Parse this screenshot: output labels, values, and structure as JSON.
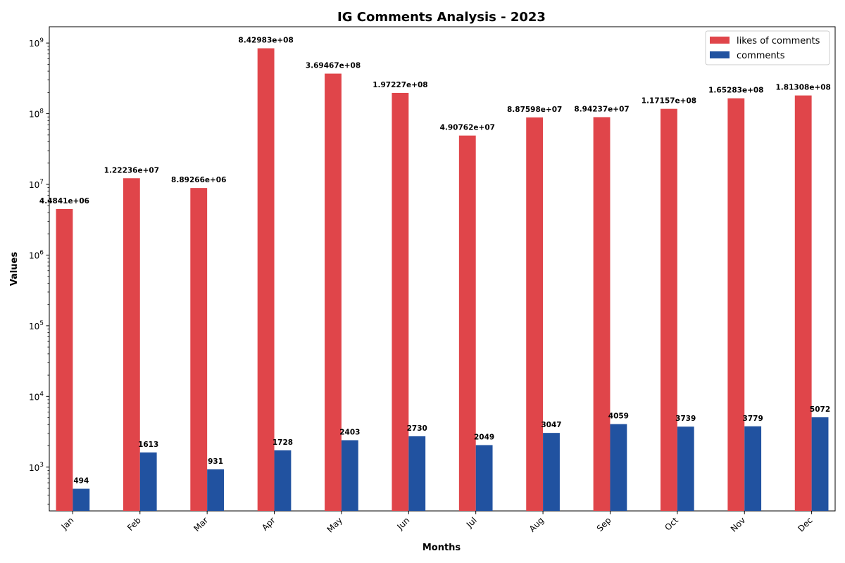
{
  "chart_data": {
    "type": "bar",
    "title": "IG Comments Analysis - 2023",
    "xlabel": "Months",
    "ylabel": "Values",
    "yscale": "log",
    "ylim": [
      240,
      1700000000
    ],
    "grid": false,
    "legend_position": "top-right",
    "categories": [
      "Jan",
      "Feb",
      "Mar",
      "Apr",
      "May",
      "Jun",
      "Jul",
      "Aug",
      "Sep",
      "Oct",
      "Nov",
      "Dec"
    ],
    "series": [
      {
        "name": "likes of comments",
        "color": "#e0454a",
        "values": [
          4484100,
          12223600,
          8892660,
          842983000,
          369467000,
          197227000,
          49076200,
          88759800,
          89423700,
          117157000,
          165283000,
          181308000
        ],
        "labels": [
          "4.4841e+06",
          "1.22236e+07",
          "8.89266e+06",
          "8.42983e+08",
          "3.69467e+08",
          "1.97227e+08",
          "4.90762e+07",
          "8.87598e+07",
          "8.94237e+07",
          "1.17157e+08",
          "1.65283e+08",
          "1.81308e+08"
        ]
      },
      {
        "name": "comments",
        "color": "#2152a0",
        "values": [
          494,
          1613,
          931,
          1728,
          2403,
          2730,
          2049,
          3047,
          4059,
          3739,
          3779,
          5072
        ],
        "labels": [
          "494",
          "1613",
          "931",
          "1728",
          "2403",
          "2730",
          "2049",
          "3047",
          "4059",
          "3739",
          "3779",
          "5072"
        ]
      }
    ],
    "y_ticks": [
      {
        "value": 1000,
        "exp": "3"
      },
      {
        "value": 10000,
        "exp": "4"
      },
      {
        "value": 100000,
        "exp": "5"
      },
      {
        "value": 1000000,
        "exp": "6"
      },
      {
        "value": 10000000,
        "exp": "7"
      },
      {
        "value": 100000000,
        "exp": "8"
      },
      {
        "value": 1000000000,
        "exp": "9"
      }
    ],
    "y_tick_base": "10"
  }
}
